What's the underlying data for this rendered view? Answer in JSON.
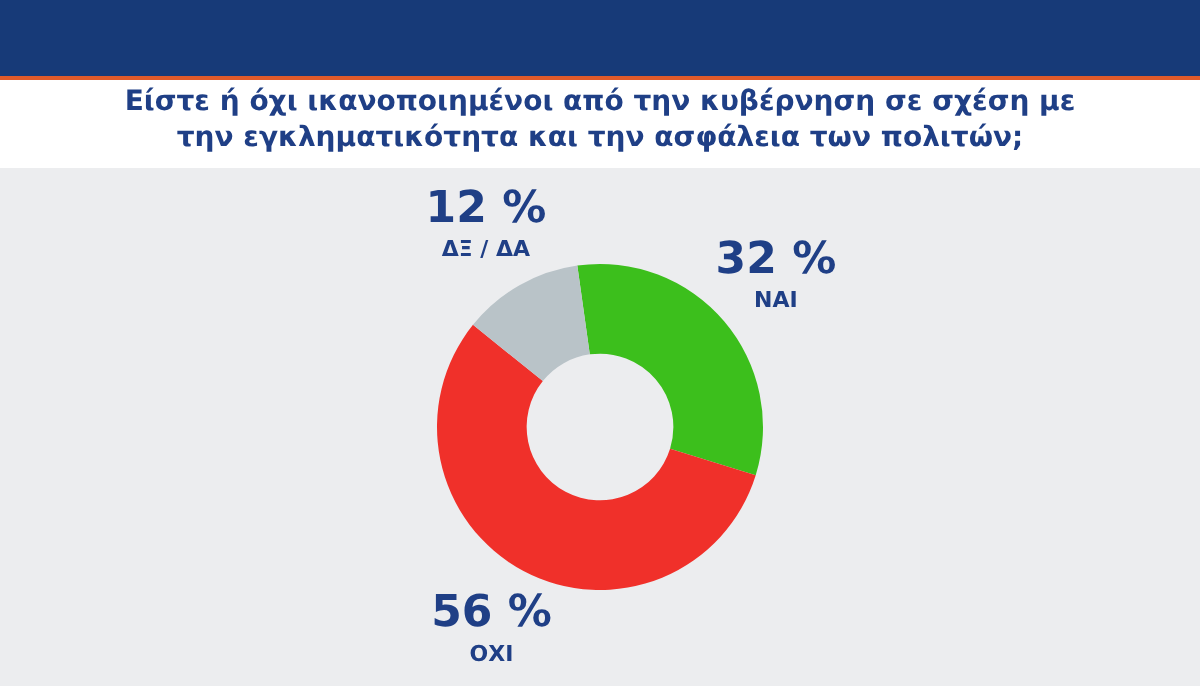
{
  "chart_data": {
    "type": "donut",
    "title": "Είστε ή όχι ικανοποιημένοι από την κυβέρνηση σε σχέση με την εγκληματικότητα και την ασφάλεια των πολιτών;",
    "categories": [
      "ΝΑΙ",
      "ΟΧΙ",
      "ΔΞ / ΔΑ"
    ],
    "values": [
      32,
      56,
      12
    ],
    "colors": [
      "#3cbf1c",
      "#f0302a",
      "#b9c3c8"
    ],
    "value_labels": [
      "32 %",
      "56 %",
      "12 %"
    ],
    "legend": false
  }
}
